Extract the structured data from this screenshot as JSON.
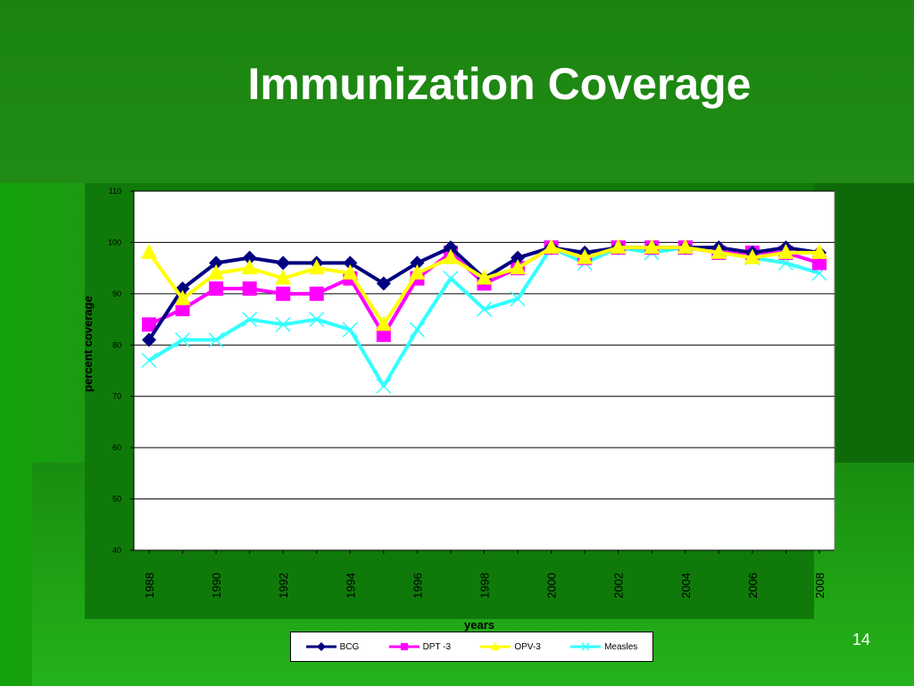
{
  "slide": {
    "title": "Immunization Coverage",
    "page_number": "14"
  },
  "colors": {
    "background": "#1e8a14",
    "plot_area": "#ffffff",
    "BCG": "#000080",
    "DPT-3": "#ff00ff",
    "OPV-3": "#ffff00",
    "Measles": "#33ffff"
  },
  "chart_data": {
    "type": "line",
    "xlabel": "years",
    "ylabel": "percent coverage",
    "ylim": [
      40,
      110
    ],
    "y_ticks": [
      40,
      50,
      60,
      70,
      80,
      90,
      100,
      110
    ],
    "x_tick_labels": [
      "1988",
      "1990",
      "1992",
      "1994",
      "1996",
      "1998",
      "2000",
      "2002",
      "2004",
      "2006",
      "2008"
    ],
    "x": [
      1988,
      1989,
      1990,
      1991,
      1992,
      1993,
      1994,
      1995,
      1996,
      1997,
      1998,
      1999,
      2000,
      2001,
      2002,
      2003,
      2004,
      2005,
      2006,
      2007,
      2008
    ],
    "grid": true,
    "legend_position": "bottom",
    "series": [
      {
        "name": "BCG",
        "marker": "diamond",
        "values": [
          81,
          91,
          96,
          97,
          96,
          96,
          96,
          92,
          96,
          99,
          93,
          97,
          99,
          98,
          99,
          99,
          99,
          99,
          98,
          99,
          98
        ]
      },
      {
        "name": "DPT -3",
        "marker": "square",
        "values": [
          84,
          87,
          91,
          91,
          90,
          90,
          93,
          82,
          93,
          98,
          92,
          95,
          99,
          97,
          99,
          99,
          99,
          98,
          98,
          98,
          96
        ]
      },
      {
        "name": "OPV-3",
        "marker": "triangle",
        "values": [
          98,
          89,
          94,
          95,
          93,
          95,
          94,
          84,
          94,
          97,
          93,
          95,
          99,
          97,
          99,
          99,
          99,
          98,
          97,
          98,
          98
        ]
      },
      {
        "name": "Measles",
        "marker": "x",
        "values": [
          77,
          81,
          81,
          85,
          84,
          85,
          83,
          72,
          83,
          93,
          87,
          89,
          99,
          96,
          99,
          98,
          99,
          98,
          97,
          96,
          94
        ]
      }
    ]
  }
}
